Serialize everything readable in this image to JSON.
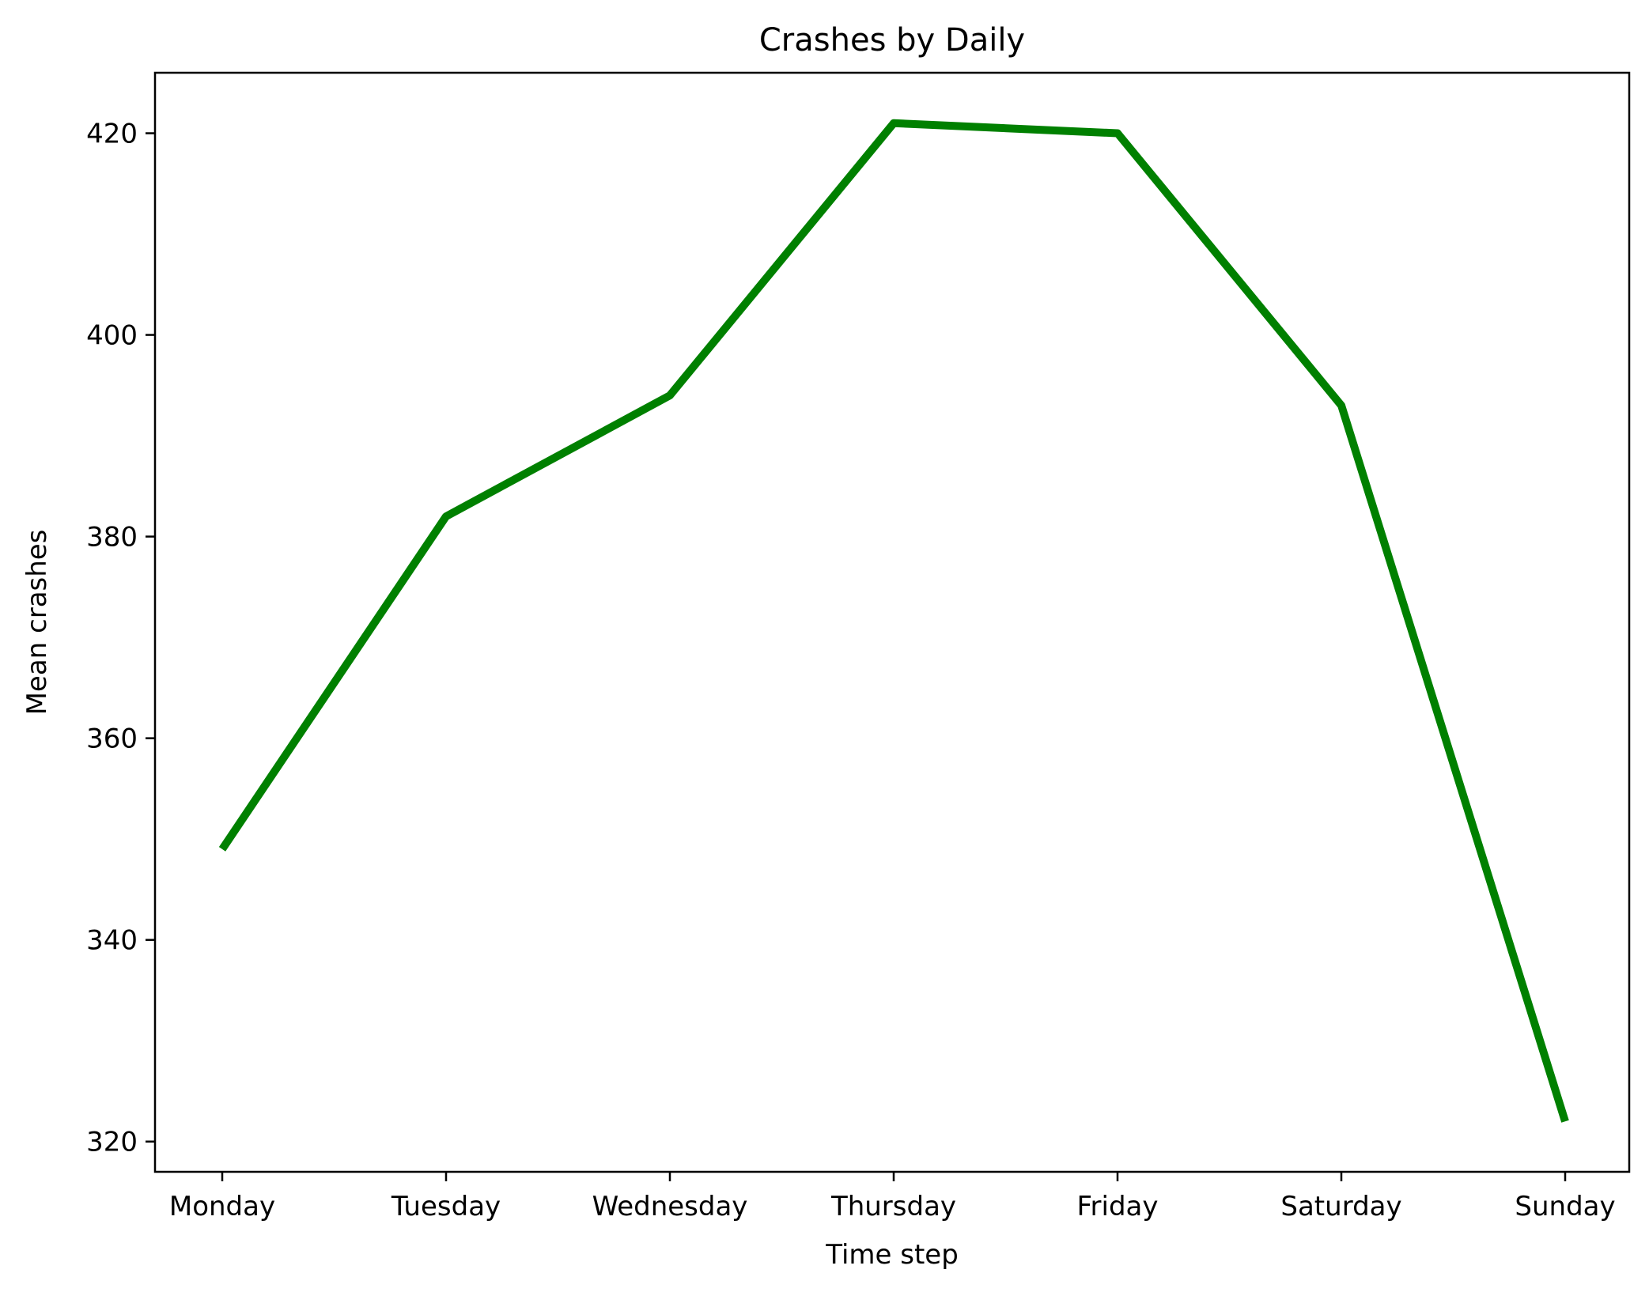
{
  "chart_data": {
    "type": "line",
    "title": "Crashes by Daily",
    "xlabel": "Time step",
    "ylabel": "Mean crashes",
    "categories": [
      "Monday",
      "Tuesday",
      "Wednesday",
      "Thursday",
      "Friday",
      "Saturday",
      "Sunday"
    ],
    "series": [
      {
        "values": [
          349,
          382,
          394,
          421,
          420,
          393,
          322
        ],
        "color": "#008000"
      }
    ],
    "ylim": [
      317,
      426
    ],
    "yticks": [
      320,
      340,
      360,
      380,
      400,
      420
    ],
    "grid": false,
    "legend": false
  }
}
